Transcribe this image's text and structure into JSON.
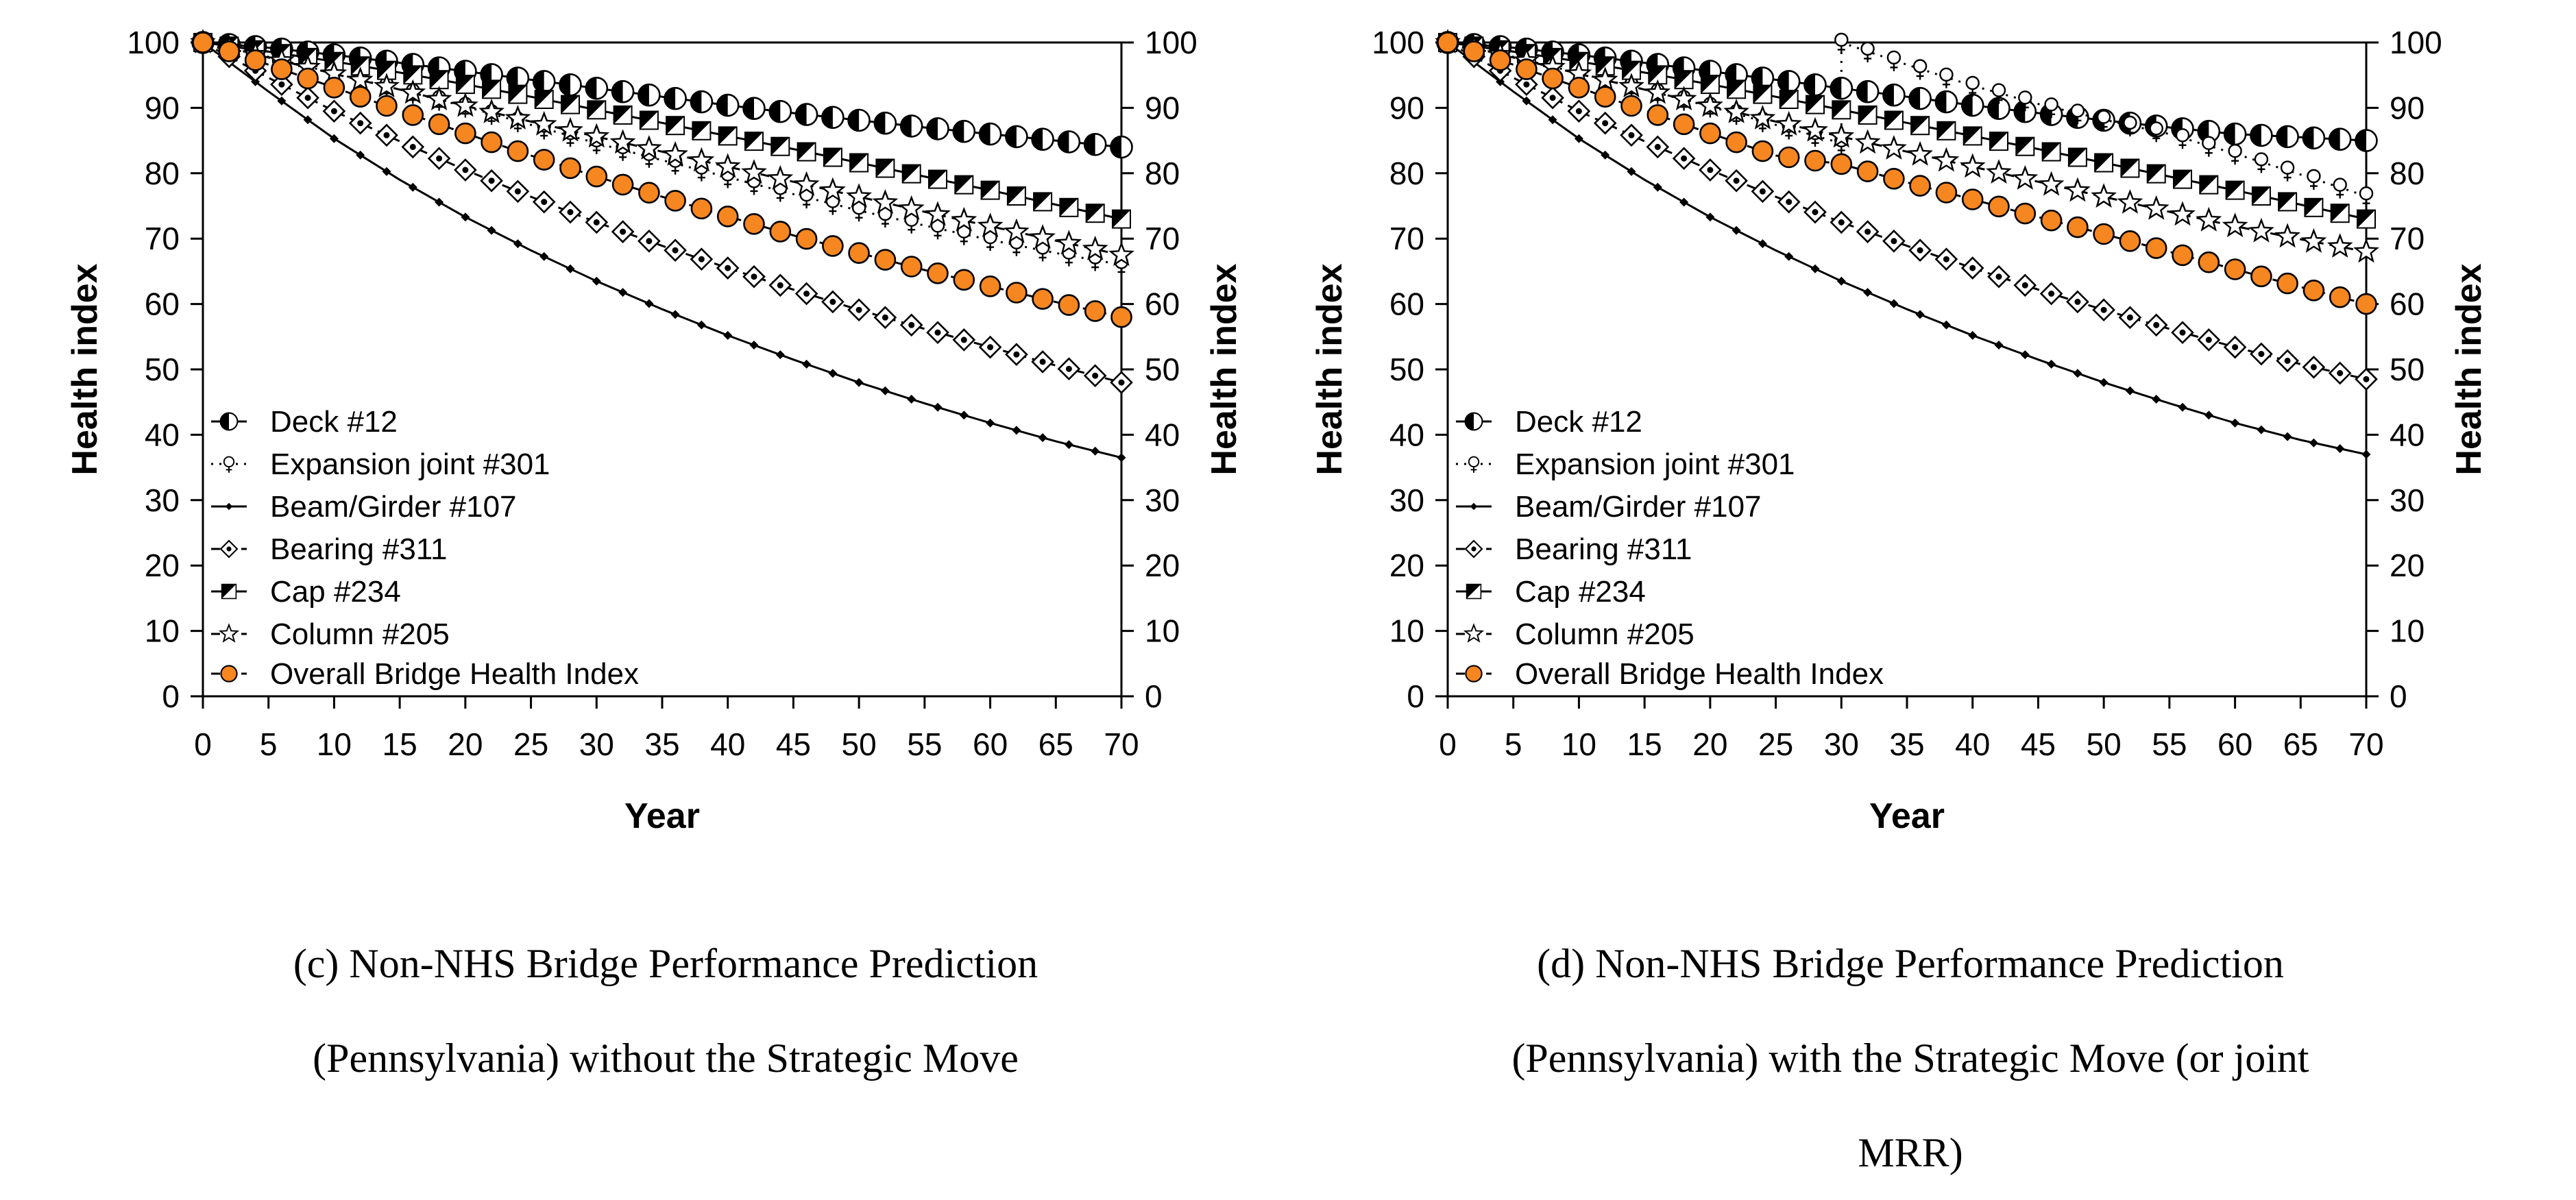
{
  "figure": {
    "background": "#ffffff",
    "text_color": "#000000",
    "accent_orange": "#F6861F"
  },
  "chart_data": [
    {
      "id": "c",
      "type": "line",
      "title": "",
      "xlabel": "Year",
      "ylabel_left": "Health index",
      "ylabel_right": "Health index",
      "xlim": [
        0,
        70
      ],
      "ylim": [
        0,
        100
      ],
      "x_ticks": [
        0,
        5,
        10,
        15,
        20,
        25,
        30,
        35,
        40,
        45,
        50,
        55,
        60,
        65,
        70
      ],
      "y_ticks": [
        0,
        10,
        20,
        30,
        40,
        50,
        60,
        70,
        80,
        90,
        100
      ],
      "grid": false,
      "legend_position": "lower-left-inside",
      "marker_step_years": 2,
      "caption_lines": [
        "(c) Non-NHS Bridge Performance Prediction",
        "(Pennsylvania) without the Strategic Move"
      ],
      "series": [
        {
          "name": "Deck #12",
          "marker": "half-filled-circle",
          "line": "solid",
          "color": "#000000",
          "segments": [
            {
              "start_year": 0,
              "step_years": 5,
              "values": [
                100,
                99.2,
                98.1,
                96.9,
                95.6,
                94.3,
                93,
                91.7,
                90.4,
                89.2,
                88.1,
                87,
                86,
                85,
                84
              ]
            }
          ]
        },
        {
          "name": "Expansion joint #301",
          "marker": "female-circle",
          "line": "dotted",
          "color": "#000000",
          "segments": [
            {
              "start_year": 0,
              "step_years": 5,
              "values": [
                100,
                97.8,
                95.3,
                92.8,
                90.2,
                87.4,
                84.6,
                82,
                79.4,
                76.8,
                74.3,
                72,
                69.8,
                67.8,
                66
              ]
            }
          ]
        },
        {
          "name": "Beam/Girder #107",
          "marker": "small-diamond",
          "line": "solid",
          "color": "#000000",
          "segments": [
            {
              "start_year": 0,
              "step_years": 5,
              "values": [
                100,
                92.5,
                85.3,
                79,
                73.3,
                68.2,
                63.5,
                59.2,
                55.2,
                51.5,
                48,
                44.8,
                41.8,
                39,
                36.5
              ]
            }
          ]
        },
        {
          "name": "Bearing #311",
          "marker": "diamond-dot",
          "line": "dashed",
          "color": "#000000",
          "segments": [
            {
              "start_year": 0,
              "step_years": 5,
              "values": [
                100,
                94.6,
                89.5,
                84.9,
                80.5,
                76.4,
                72.5,
                68.9,
                65.5,
                62.2,
                59.1,
                56.2,
                53.4,
                50.6,
                48
              ]
            }
          ]
        },
        {
          "name": "Cap #234",
          "marker": "half-filled-square",
          "line": "solid",
          "color": "#000000",
          "segments": [
            {
              "start_year": 0,
              "step_years": 5,
              "values": [
                100,
                98.6,
                97.1,
                95.4,
                93.6,
                91.7,
                89.7,
                87.7,
                85.7,
                83.7,
                81.6,
                79.5,
                77.4,
                75.2,
                73
              ]
            }
          ]
        },
        {
          "name": "Column #205",
          "marker": "open-star",
          "line": "dashed",
          "color": "#000000",
          "segments": [
            {
              "start_year": 0,
              "step_years": 5,
              "values": [
                100,
                97.7,
                95.2,
                92.8,
                90.3,
                87.9,
                85.6,
                83.3,
                81,
                78.7,
                76.4,
                74.1,
                71.9,
                69.7,
                67.5
              ]
            }
          ]
        },
        {
          "name": "Overall Bridge Health Index",
          "marker": "orange-circle",
          "line": "dashed",
          "color": "#F6861F",
          "segments": [
            {
              "start_year": 0,
              "step_years": 5,
              "values": [
                100,
                96.6,
                93.1,
                89.6,
                86.1,
                82.7,
                79.5,
                76.4,
                73.4,
                70.5,
                67.8,
                65.2,
                62.7,
                60.3,
                58
              ]
            }
          ]
        }
      ],
      "annotations": []
    },
    {
      "id": "d",
      "type": "line",
      "title": "",
      "xlabel": "Year",
      "ylabel_left": "Health index",
      "ylabel_right": "Health index",
      "xlim": [
        0,
        70
      ],
      "ylim": [
        0,
        100
      ],
      "x_ticks": [
        0,
        5,
        10,
        15,
        20,
        25,
        30,
        35,
        40,
        45,
        50,
        55,
        60,
        65,
        70
      ],
      "y_ticks": [
        0,
        10,
        20,
        30,
        40,
        50,
        60,
        70,
        80,
        90,
        100
      ],
      "grid": false,
      "legend_position": "lower-left-inside",
      "marker_step_years": 2,
      "caption_lines": [
        "(d) Non-NHS Bridge Performance Prediction",
        "(Pennsylvania) with the Strategic Move (or joint",
        "MRR)"
      ],
      "series": [
        {
          "name": "Deck #12",
          "marker": "half-filled-circle",
          "line": "solid",
          "color": "#000000",
          "segments": [
            {
              "start_year": 0,
              "step_years": 5,
              "values": [
                100,
                99.2,
                98.1,
                96.9,
                95.6,
                94.3,
                93,
                91.7,
                90.4,
                89.2,
                88.1,
                87,
                86,
                85.5,
                85
              ]
            }
          ]
        },
        {
          "name": "Expansion joint #301",
          "marker": "female-circle",
          "line": "dotted",
          "color": "#000000",
          "segments": [
            {
              "start_year": 0,
              "step_years": 5,
              "values": [
                100,
                97.8,
                95.3,
                92.8,
                90.2,
                87.4,
                84.6
              ]
            },
            {
              "start_year": 30,
              "step_years": 5,
              "values": [
                100,
                96.6,
                93.4,
                90.6,
                88.2,
                86,
                83,
                79.8,
                76.5
              ]
            }
          ]
        },
        {
          "name": "Beam/Girder #107",
          "marker": "small-diamond",
          "line": "solid",
          "color": "#000000",
          "segments": [
            {
              "start_year": 0,
              "step_years": 5,
              "values": [
                100,
                92.5,
                85.3,
                79,
                73.3,
                68.2,
                63.5,
                59.2,
                55.2,
                51.5,
                48,
                44.8,
                41.8,
                39.2,
                37
              ]
            }
          ]
        },
        {
          "name": "Bearing #311",
          "marker": "diamond-dot",
          "line": "dashed",
          "color": "#000000",
          "segments": [
            {
              "start_year": 0,
              "step_years": 5,
              "values": [
                100,
                94.6,
                89.5,
                84.9,
                80.5,
                76.4,
                72.5,
                68.9,
                65.5,
                62.2,
                59.1,
                56.2,
                53.4,
                50.8,
                48.5
              ]
            }
          ]
        },
        {
          "name": "Cap #234",
          "marker": "half-filled-square",
          "line": "solid",
          "color": "#000000",
          "segments": [
            {
              "start_year": 0,
              "step_years": 5,
              "values": [
                100,
                98.6,
                97.1,
                95.4,
                93.6,
                91.7,
                89.7,
                87.7,
                85.7,
                83.7,
                81.6,
                79.5,
                77.4,
                75.2,
                73
              ]
            }
          ]
        },
        {
          "name": "Column #205",
          "marker": "open-star",
          "line": "dashed",
          "color": "#000000",
          "segments": [
            {
              "start_year": 0,
              "step_years": 5,
              "values": [
                100,
                97.7,
                95.2,
                92.8,
                90.3,
                87.9,
                85.6,
                83.3,
                81,
                78.7,
                76.4,
                74.1,
                71.9,
                69.9,
                68
              ]
            }
          ]
        },
        {
          "name": "Overall Bridge Health Index",
          "marker": "orange-circle",
          "line": "dashed",
          "color": "#F6861F",
          "segments": [
            {
              "start_year": 0,
              "step_years": 5,
              "values": [
                100,
                96.6,
                93.1,
                89.6,
                86.1,
                82.7,
                81.4,
                78.6,
                76,
                73.3,
                70.7,
                68,
                65.3,
                62.6,
                60
              ]
            }
          ]
        }
      ],
      "annotations": [
        {
          "type": "vertical-dotted-line",
          "label": "joint-MRR-jump",
          "year": 30,
          "from_value": 84.6,
          "to_value": 100
        }
      ]
    }
  ]
}
